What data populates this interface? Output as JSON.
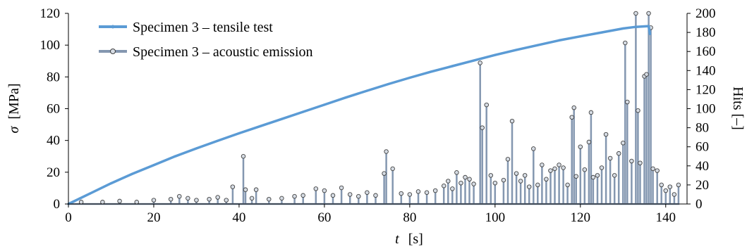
{
  "chart_data": {
    "type": "line",
    "x_axis": {
      "label_var": "t",
      "label_unit": "[s]",
      "range": [
        0,
        145
      ],
      "ticks": [
        0,
        20,
        40,
        60,
        80,
        100,
        120,
        140
      ]
    },
    "y_left": {
      "label_var": "σ",
      "label_unit": "[MPa]",
      "range": [
        0,
        120
      ],
      "ticks": [
        0,
        20,
        40,
        60,
        80,
        100,
        120
      ]
    },
    "y_right": {
      "label": "Hits [–]",
      "range": [
        0,
        200
      ],
      "ticks": [
        0,
        20,
        40,
        60,
        80,
        100,
        120,
        140,
        160,
        180,
        200
      ]
    },
    "legend_position": "top-left",
    "grid": false,
    "colors": {
      "tensile": "#5b9bd5",
      "acoustic": "#8497b0",
      "marker_fill": "#d6dce4",
      "marker_stroke": "#404040"
    },
    "series": [
      {
        "name": "Specimen 3 – tensile test",
        "axis": "left",
        "points": [
          [
            0,
            0
          ],
          [
            5,
            6.5
          ],
          [
            10,
            13
          ],
          [
            15,
            19
          ],
          [
            20,
            24.5
          ],
          [
            25,
            30
          ],
          [
            30,
            35
          ],
          [
            35,
            39.8
          ],
          [
            40,
            44.5
          ],
          [
            45,
            49
          ],
          [
            50,
            53.5
          ],
          [
            55,
            58
          ],
          [
            60,
            62.5
          ],
          [
            65,
            67
          ],
          [
            70,
            71.3
          ],
          [
            75,
            75.5
          ],
          [
            80,
            79.5
          ],
          [
            85,
            83.3
          ],
          [
            90,
            86.8
          ],
          [
            95,
            90.3
          ],
          [
            100,
            93.8
          ],
          [
            105,
            97
          ],
          [
            110,
            100
          ],
          [
            115,
            103
          ],
          [
            120,
            105.5
          ],
          [
            125,
            108
          ],
          [
            130,
            110.5
          ],
          [
            133,
            111.5
          ],
          [
            136,
            112
          ],
          [
            136.3,
            107
          ]
        ]
      },
      {
        "name": "Specimen 3 – acoustic emission",
        "axis": "right",
        "spikes": [
          [
            3,
            2
          ],
          [
            8,
            2
          ],
          [
            12,
            3
          ],
          [
            16,
            2
          ],
          [
            20,
            4
          ],
          [
            24,
            5
          ],
          [
            26,
            8
          ],
          [
            28,
            6
          ],
          [
            30,
            4
          ],
          [
            33,
            5
          ],
          [
            35,
            7
          ],
          [
            37,
            4
          ],
          [
            38.5,
            18
          ],
          [
            41,
            50
          ],
          [
            41.5,
            15
          ],
          [
            43,
            6
          ],
          [
            44,
            15
          ],
          [
            47,
            5
          ],
          [
            50,
            6
          ],
          [
            53,
            8
          ],
          [
            55,
            9
          ],
          [
            58,
            16
          ],
          [
            60,
            14
          ],
          [
            62,
            9
          ],
          [
            64,
            17
          ],
          [
            66,
            10
          ],
          [
            68,
            8
          ],
          [
            70,
            12
          ],
          [
            72,
            9
          ],
          [
            74,
            32
          ],
          [
            74.5,
            55
          ],
          [
            76,
            37
          ],
          [
            78,
            11
          ],
          [
            80,
            10
          ],
          [
            82,
            13
          ],
          [
            84,
            12
          ],
          [
            86,
            14
          ],
          [
            88,
            19
          ],
          [
            89,
            24
          ],
          [
            90,
            16
          ],
          [
            91,
            33
          ],
          [
            92,
            22
          ],
          [
            93,
            28
          ],
          [
            94,
            26
          ],
          [
            95,
            21
          ],
          [
            96.5,
            148
          ],
          [
            97,
            80
          ],
          [
            98,
            104
          ],
          [
            99,
            30
          ],
          [
            100,
            22
          ],
          [
            102,
            25
          ],
          [
            103,
            47
          ],
          [
            104,
            87
          ],
          [
            105,
            32
          ],
          [
            106,
            24
          ],
          [
            107,
            30
          ],
          [
            108,
            18
          ],
          [
            109,
            58
          ],
          [
            110,
            20
          ],
          [
            111,
            41
          ],
          [
            112,
            26
          ],
          [
            113,
            35
          ],
          [
            114,
            37
          ],
          [
            115,
            41
          ],
          [
            116,
            38
          ],
          [
            117,
            20
          ],
          [
            118,
            91
          ],
          [
            118.5,
            101
          ],
          [
            119,
            29
          ],
          [
            120,
            60
          ],
          [
            121,
            36
          ],
          [
            122,
            65
          ],
          [
            122.5,
            96
          ],
          [
            123,
            28
          ],
          [
            124,
            30
          ],
          [
            125,
            38
          ],
          [
            126,
            73
          ],
          [
            127,
            48
          ],
          [
            128,
            30
          ],
          [
            129,
            53
          ],
          [
            130,
            64
          ],
          [
            130.5,
            169
          ],
          [
            131,
            107
          ],
          [
            132,
            45
          ],
          [
            133,
            200
          ],
          [
            133.5,
            98
          ],
          [
            134,
            43
          ],
          [
            135,
            134
          ],
          [
            135.5,
            136
          ],
          [
            136,
            200
          ],
          [
            136.5,
            185
          ],
          [
            137,
            37
          ],
          [
            138,
            35
          ],
          [
            139,
            20
          ],
          [
            140,
            14
          ],
          [
            141,
            18
          ],
          [
            142,
            10
          ],
          [
            143,
            20
          ]
        ]
      }
    ]
  }
}
